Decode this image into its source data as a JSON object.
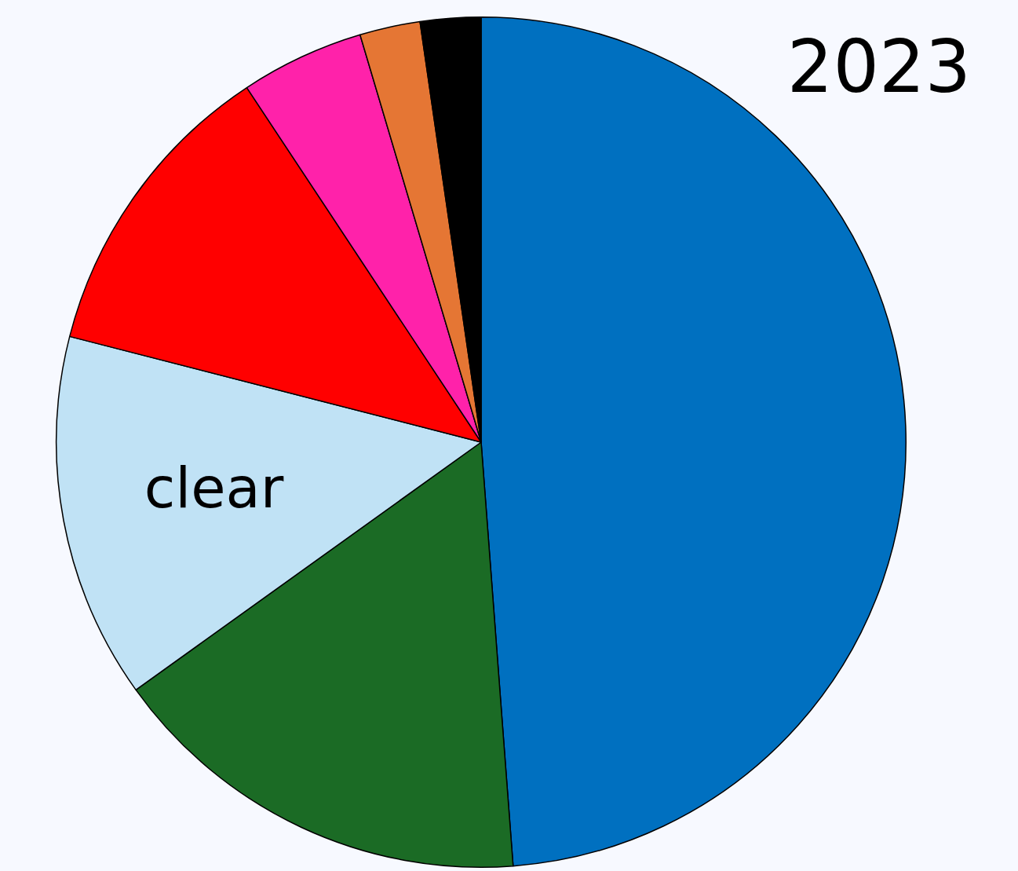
{
  "chart_data": {
    "type": "pie",
    "title": "2023",
    "categories": [
      null,
      null,
      "clear",
      null,
      null,
      null,
      null
    ],
    "values": [
      48.8,
      16.3,
      13.9,
      11.7,
      4.7,
      2.3,
      2.3
    ],
    "colors": [
      "#0070c0",
      "#1b6b25",
      "#c0e2f5",
      "#ff0000",
      "#ff22aa",
      "#e57634",
      "#000000"
    ],
    "legend": false
  }
}
